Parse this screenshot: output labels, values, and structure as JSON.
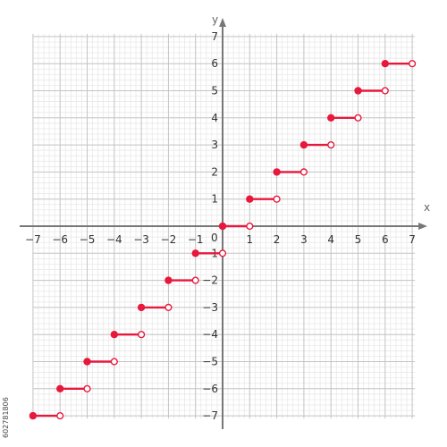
{
  "chart_data": {
    "type": "scatter",
    "title": "",
    "xlabel": "x",
    "ylabel": "y",
    "xlim": [
      -7,
      7
    ],
    "ylim": [
      -7,
      7
    ],
    "x_ticks": [
      "-7",
      "-6",
      "-5",
      "-4",
      "-3",
      "-2",
      "-1",
      "1",
      "2",
      "3",
      "4",
      "5",
      "6",
      "7"
    ],
    "y_ticks": [
      "7",
      "6",
      "5",
      "4",
      "3",
      "2",
      "1",
      "-1",
      "-2",
      "-3",
      "-4",
      "-5",
      "-6",
      "-7"
    ],
    "origin_label": "0",
    "grid": true,
    "segments": [
      {
        "x_start": -7,
        "x_end": -6,
        "y": -7
      },
      {
        "x_start": -6,
        "x_end": -5,
        "y": -6
      },
      {
        "x_start": -5,
        "x_end": -4,
        "y": -5
      },
      {
        "x_start": -4,
        "x_end": -3,
        "y": -4
      },
      {
        "x_start": -3,
        "x_end": -2,
        "y": -3
      },
      {
        "x_start": -2,
        "x_end": -1,
        "y": -2
      },
      {
        "x_start": -1,
        "x_end": 0,
        "y": -1
      },
      {
        "x_start": 0,
        "x_end": 1,
        "y": 0
      },
      {
        "x_start": 1,
        "x_end": 2,
        "y": 1
      },
      {
        "x_start": 2,
        "x_end": 3,
        "y": 2
      },
      {
        "x_start": 3,
        "x_end": 4,
        "y": 3
      },
      {
        "x_start": 4,
        "x_end": 5,
        "y": 4
      },
      {
        "x_start": 5,
        "x_end": 6,
        "y": 5
      },
      {
        "x_start": 6,
        "x_end": 7,
        "y": 6
      }
    ],
    "colors": {
      "series": "#e8183c",
      "axis": "#777777",
      "grid_major": "#c4c4c4",
      "grid_minor": "#e6e6e6"
    }
  },
  "watermark_id": "602781806"
}
